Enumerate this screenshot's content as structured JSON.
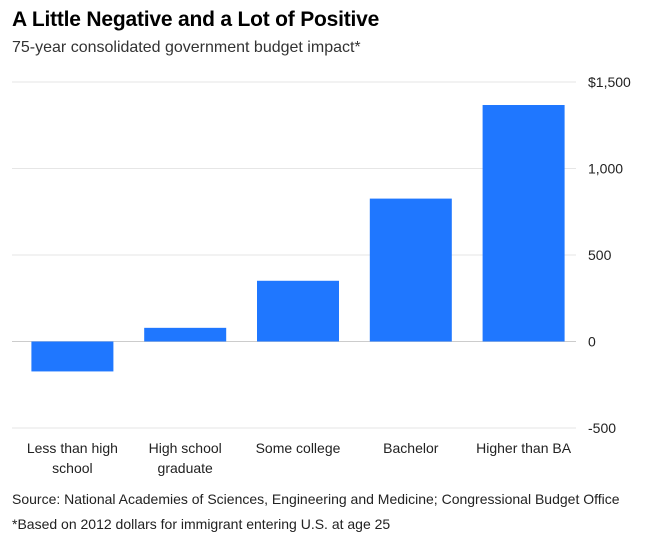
{
  "header": {
    "title": "A Little Negative and a Lot of Positive",
    "subtitle": "75-year consolidated government budget impact*"
  },
  "footer": {
    "source": "Source: National Academies of Sciences, Engineering and Medicine; Congressional Budget Office",
    "note": "*Based on 2012 dollars for immigrant entering U.S. at age 25"
  },
  "colors": {
    "bar": "#1f77ff",
    "grid": "#e6e6e6",
    "zero_line": "#cccccc",
    "text": "#222222"
  },
  "chart_data": {
    "type": "bar",
    "title": "A Little Negative and a Lot of Positive",
    "subtitle": "75-year consolidated government budget impact*",
    "categories": [
      [
        "Less than high",
        "school"
      ],
      [
        "High school",
        "graduate"
      ],
      [
        "Some college"
      ],
      [
        "Bachelor"
      ],
      [
        "Higher than BA"
      ]
    ],
    "values": [
      -173,
      79,
      351,
      826,
      1367
    ],
    "ylim": [
      -500,
      1500
    ],
    "yticks": [
      {
        "value": 1500,
        "label": "$1,500"
      },
      {
        "value": 1000,
        "label": "1,000"
      },
      {
        "value": 500,
        "label": "500"
      },
      {
        "value": 0,
        "label": "0"
      },
      {
        "value": -500,
        "label": "-500"
      }
    ],
    "grid": true,
    "legend": "none",
    "y_axis_side": "right"
  }
}
